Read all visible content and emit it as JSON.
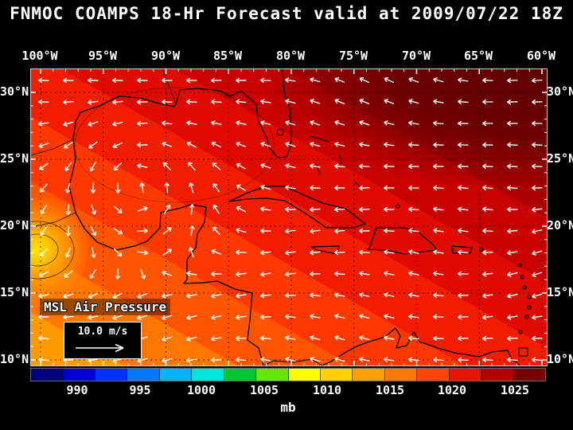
{
  "title": "FNMOC COAMPS 18-Hr Forecast valid at 2009/07/22 18Z",
  "axes": {
    "lon_labels": [
      "100°W",
      "95°W",
      "90°W",
      "85°W",
      "80°W",
      "75°W",
      "70°W",
      "65°W",
      "60°W"
    ],
    "lat_labels": [
      "30°N",
      "25°N",
      "20°N",
      "15°N",
      "10°N"
    ]
  },
  "map": {
    "field_label": "MSL Air Pressure",
    "wind_scale_label": "10.0 m/s"
  },
  "icons": {
    "wind_arrow": "→"
  },
  "colorbar": {
    "unit": "mb",
    "tick_labels": [
      "990",
      "995",
      "1000",
      "1005",
      "1010",
      "1015",
      "1020",
      "1025"
    ],
    "colors": [
      "#000082",
      "#0000d2",
      "#0032ff",
      "#0078ff",
      "#00b4ff",
      "#00e6dc",
      "#00c832",
      "#64e600",
      "#ffff00",
      "#ffd200",
      "#ffa000",
      "#ff7800",
      "#ff4600",
      "#e61400",
      "#b40000",
      "#780000"
    ]
  },
  "theme": {
    "background": "#000000",
    "text": "#ffffff",
    "coastline": "#000000",
    "wind_vector": "#ffffff"
  }
}
